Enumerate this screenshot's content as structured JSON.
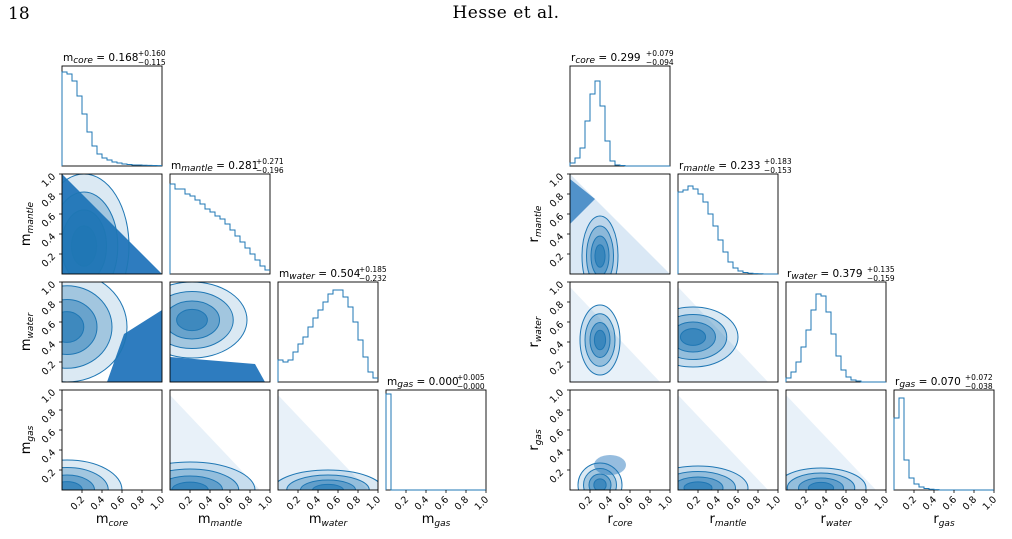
{
  "page": {
    "page_number": "18",
    "running_head": "Hesse et al."
  },
  "colors": {
    "accent": "#1f77b4",
    "fill_dark": "#2e7cbf",
    "fill_light": "#d6e6f4",
    "frame": "#000000"
  },
  "chart_data": [
    {
      "type": "corner",
      "axis_range": [
        0,
        1
      ],
      "ticks": [
        "0.2",
        "0.4",
        "0.6",
        "0.8",
        "1.0"
      ],
      "variables": [
        {
          "base": "m",
          "sub": "core",
          "median": "0.168",
          "plus": "+0.160",
          "minus": "−0.115",
          "hist": [
            0.94,
            0.92,
            0.85,
            0.7,
            0.52,
            0.34,
            0.2,
            0.12,
            0.08,
            0.06,
            0.04,
            0.03,
            0.02,
            0.015,
            0.01,
            0.01,
            0.008,
            0.006,
            0.005,
            0.004
          ]
        },
        {
          "base": "m",
          "sub": "mantle",
          "median": "0.281",
          "plus": "+0.271",
          "minus": "−0.196",
          "hist": [
            0.9,
            0.85,
            0.85,
            0.8,
            0.78,
            0.74,
            0.7,
            0.65,
            0.62,
            0.58,
            0.55,
            0.5,
            0.44,
            0.38,
            0.32,
            0.26,
            0.2,
            0.14,
            0.08,
            0.04
          ]
        },
        {
          "base": "m",
          "sub": "water",
          "median": "0.504",
          "plus": "+0.185",
          "minus": "−0.232",
          "hist": [
            0.22,
            0.2,
            0.22,
            0.3,
            0.38,
            0.45,
            0.55,
            0.64,
            0.72,
            0.8,
            0.88,
            0.92,
            0.92,
            0.85,
            0.75,
            0.6,
            0.42,
            0.25,
            0.1,
            0.04
          ]
        },
        {
          "base": "m",
          "sub": "gas",
          "median": "0.000",
          "plus": "+0.005",
          "minus": "−0.000",
          "hist": [
            0.96,
            0,
            0,
            0,
            0,
            0,
            0,
            0,
            0,
            0,
            0,
            0,
            0,
            0,
            0,
            0,
            0,
            0,
            0,
            0
          ]
        }
      ],
      "pairs": [
        {
          "row": 1,
          "col": 0,
          "mode": 0,
          "cx": 0.22,
          "cy": 0.28,
          "sx": 0.45,
          "sy": 0.72,
          "fill": "triangle"
        },
        {
          "row": 2,
          "col": 0,
          "mode": 0,
          "cx": 0.05,
          "cy": 0.55,
          "sx": 0.6,
          "sy": 0.55,
          "fill": "corner-low"
        },
        {
          "row": 2,
          "col": 1,
          "mode": 0,
          "cx": 0.22,
          "cy": 0.62,
          "sx": 0.55,
          "sy": 0.38,
          "fill": "strip-low"
        },
        {
          "row": 3,
          "col": 0,
          "mode": 0,
          "cx": 0.05,
          "cy": 0.0,
          "sx": 0.55,
          "sy": 0.3,
          "fill": "none"
        },
        {
          "row": 3,
          "col": 1,
          "mode": 0,
          "cx": 0.2,
          "cy": 0.0,
          "sx": 0.65,
          "sy": 0.28,
          "fill": "scatter"
        },
        {
          "row": 3,
          "col": 2,
          "mode": 0,
          "cx": 0.5,
          "cy": 0.0,
          "sx": 0.55,
          "sy": 0.2,
          "fill": "scatter"
        }
      ]
    },
    {
      "type": "corner",
      "axis_range": [
        0,
        1
      ],
      "ticks": [
        "0.2",
        "0.4",
        "0.6",
        "0.8",
        "1.0"
      ],
      "variables": [
        {
          "base": "r",
          "sub": "core",
          "median": "0.299",
          "plus": "+0.079",
          "minus": "−0.094",
          "hist": [
            0.03,
            0.08,
            0.18,
            0.45,
            0.72,
            0.85,
            0.6,
            0.25,
            0.05,
            0.01,
            0.005,
            0,
            0,
            0,
            0,
            0,
            0,
            0,
            0,
            0
          ]
        },
        {
          "base": "r",
          "sub": "mantle",
          "median": "0.233",
          "plus": "+0.183",
          "minus": "−0.153",
          "hist": [
            0.82,
            0.84,
            0.88,
            0.85,
            0.8,
            0.72,
            0.6,
            0.48,
            0.34,
            0.22,
            0.12,
            0.06,
            0.03,
            0.015,
            0.008,
            0.004,
            0.002,
            0,
            0,
            0
          ]
        },
        {
          "base": "r",
          "sub": "water",
          "median": "0.379",
          "plus": "+0.135",
          "minus": "−0.159",
          "hist": [
            0.04,
            0.1,
            0.2,
            0.35,
            0.52,
            0.72,
            0.88,
            0.86,
            0.7,
            0.48,
            0.26,
            0.12,
            0.05,
            0.02,
            0.01,
            0,
            0,
            0,
            0,
            0
          ]
        },
        {
          "base": "r",
          "sub": "gas",
          "median": "0.070",
          "plus": "+0.072",
          "minus": "−0.038",
          "hist": [
            0.72,
            0.92,
            0.3,
            0.12,
            0.06,
            0.03,
            0.015,
            0.008,
            0.004,
            0,
            0,
            0,
            0,
            0,
            0,
            0,
            0,
            0,
            0,
            0
          ]
        }
      ],
      "pairs": [
        {
          "row": 1,
          "col": 0,
          "mode": 1,
          "cx": 0.3,
          "cy": 0.18,
          "sx": 0.18,
          "sy": 0.4,
          "fill": "triangle-left"
        },
        {
          "row": 2,
          "col": 0,
          "mode": 1,
          "cx": 0.3,
          "cy": 0.42,
          "sx": 0.2,
          "sy": 0.35,
          "fill": "scatter-left"
        },
        {
          "row": 2,
          "col": 1,
          "mode": 1,
          "cx": 0.15,
          "cy": 0.45,
          "sx": 0.45,
          "sy": 0.3,
          "fill": "scatter"
        },
        {
          "row": 3,
          "col": 0,
          "mode": 1,
          "cx": 0.3,
          "cy": 0.05,
          "sx": 0.22,
          "sy": 0.22,
          "fill": "blob"
        },
        {
          "row": 3,
          "col": 1,
          "mode": 1,
          "cx": 0.2,
          "cy": 0.02,
          "sx": 0.5,
          "sy": 0.22,
          "fill": "scatter"
        },
        {
          "row": 3,
          "col": 2,
          "mode": 1,
          "cx": 0.35,
          "cy": 0.02,
          "sx": 0.45,
          "sy": 0.2,
          "fill": "scatter"
        }
      ]
    }
  ]
}
